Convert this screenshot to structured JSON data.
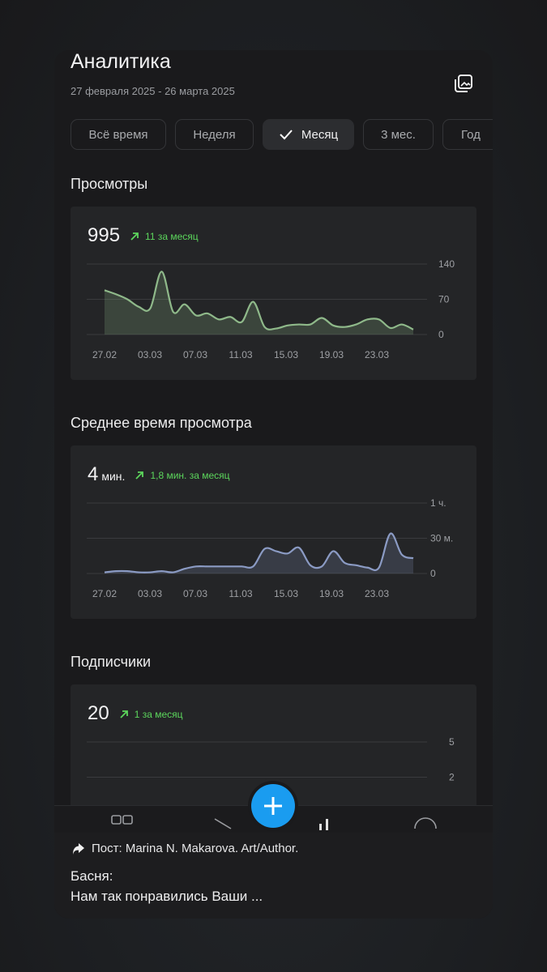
{
  "header": {
    "title": "Аналитика",
    "date_range": "27 февраля 2025 - 26 марта 2025"
  },
  "filters": [
    {
      "label": "Всё время",
      "active": false
    },
    {
      "label": "Неделя",
      "active": false
    },
    {
      "label": "Месяц",
      "active": true
    },
    {
      "label": "3 мес.",
      "active": false
    },
    {
      "label": "Год",
      "active": false
    }
  ],
  "views": {
    "title": "Просмотры",
    "value": "995",
    "trend": "11 за месяц"
  },
  "avg_time": {
    "title": "Среднее время просмотра",
    "value": "4",
    "unit": "мин.",
    "trend": "1,8 мин. за месяц"
  },
  "subscribers": {
    "title": "Подписчики",
    "value": "20",
    "trend": "1 за месяц"
  },
  "notification": {
    "source": "Пост: Marina N. Makarova. Art/Author.",
    "title": "Басня:",
    "body": "Нам так понравились Ваши ..."
  },
  "colors": {
    "views_line": "#8fb98a",
    "time_line": "#8b9bc4",
    "trend": "#5cd65c",
    "fab": "#1a9cf0"
  },
  "chart_data": [
    {
      "type": "area",
      "x_labels": [
        "27.02",
        "03.03",
        "07.03",
        "11.03",
        "15.03",
        "19.03",
        "23.03"
      ],
      "y_ticks": [
        "0",
        "70",
        "140"
      ],
      "ylim": [
        0,
        140
      ],
      "values": [
        88,
        80,
        70,
        55,
        52,
        125,
        45,
        60,
        38,
        42,
        30,
        35,
        25,
        65,
        15,
        12,
        18,
        20,
        20,
        33,
        18,
        15,
        20,
        30,
        30,
        13,
        20,
        10
      ]
    },
    {
      "type": "area",
      "x_labels": [
        "27.02",
        "03.03",
        "07.03",
        "11.03",
        "15.03",
        "19.03",
        "23.03"
      ],
      "y_ticks": [
        "0",
        "30 м.",
        "1 ч."
      ],
      "ylim": [
        0,
        60
      ],
      "values": [
        1,
        2,
        2,
        1,
        1,
        2,
        1,
        4,
        6,
        6,
        6,
        6,
        6,
        6,
        21,
        19,
        17,
        22,
        7,
        6,
        19,
        9,
        7,
        5,
        5,
        34,
        16,
        13
      ]
    },
    {
      "type": "area",
      "x_labels": [],
      "y_ticks": [
        "2",
        "5"
      ],
      "ylim": [
        0,
        5
      ],
      "values": []
    }
  ]
}
